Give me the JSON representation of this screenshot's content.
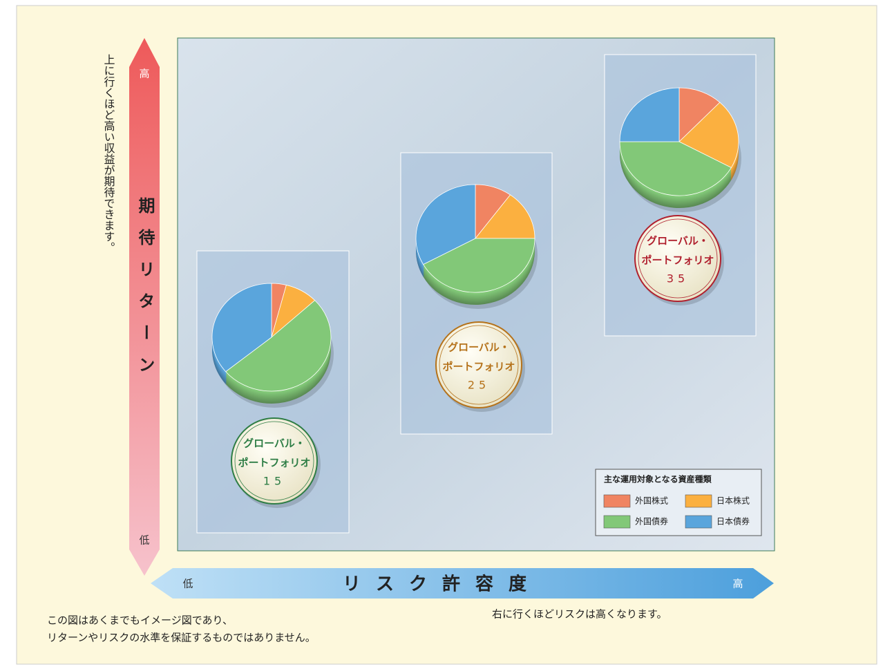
{
  "chart_data": [
    {
      "type": "pie",
      "name_lines": [
        "グローバル・",
        "ポートフォリオ"
      ],
      "number": "15",
      "badge_color": "#2e7d45",
      "categories": [
        "外国株式",
        "日本株式",
        "外国債券",
        "日本債券"
      ],
      "values": [
        4,
        9,
        51,
        36
      ],
      "colors": [
        "#f08462",
        "#fbb040",
        "#82c878",
        "#5aa5dc"
      ]
    },
    {
      "type": "pie",
      "name_lines": [
        "グローバル・",
        "ポートフォリオ"
      ],
      "number": "25",
      "badge_color": "#b5721a",
      "categories": [
        "外国株式",
        "日本株式",
        "外国債券",
        "日本債券"
      ],
      "values": [
        10,
        15,
        42,
        33
      ],
      "colors": [
        "#f08462",
        "#fbb040",
        "#82c878",
        "#5aa5dc"
      ]
    },
    {
      "type": "pie",
      "name_lines": [
        "グローバル・",
        "ポートフォリオ"
      ],
      "number": "35",
      "badge_color": "#b0202e",
      "categories": [
        "外国株式",
        "日本株式",
        "外国債券",
        "日本債券"
      ],
      "values": [
        12,
        21,
        42,
        25
      ],
      "colors": [
        "#f08462",
        "#fbb040",
        "#82c878",
        "#5aa5dc"
      ]
    }
  ],
  "y_axis": {
    "title": "期待リターン",
    "high": "高",
    "low": "低",
    "note": "上に行くほど高い収益が期待できます。"
  },
  "x_axis": {
    "title": "リスク許容度",
    "high": "高",
    "low": "低",
    "note": "右に行くほどリスクは高くなります。"
  },
  "legend_title": "主な運用対象となる資産種類",
  "disclaimer": [
    "この図はあくまでもイメージ図であり、",
    "リターンやリスクの水準を保証するものではありません。"
  ]
}
